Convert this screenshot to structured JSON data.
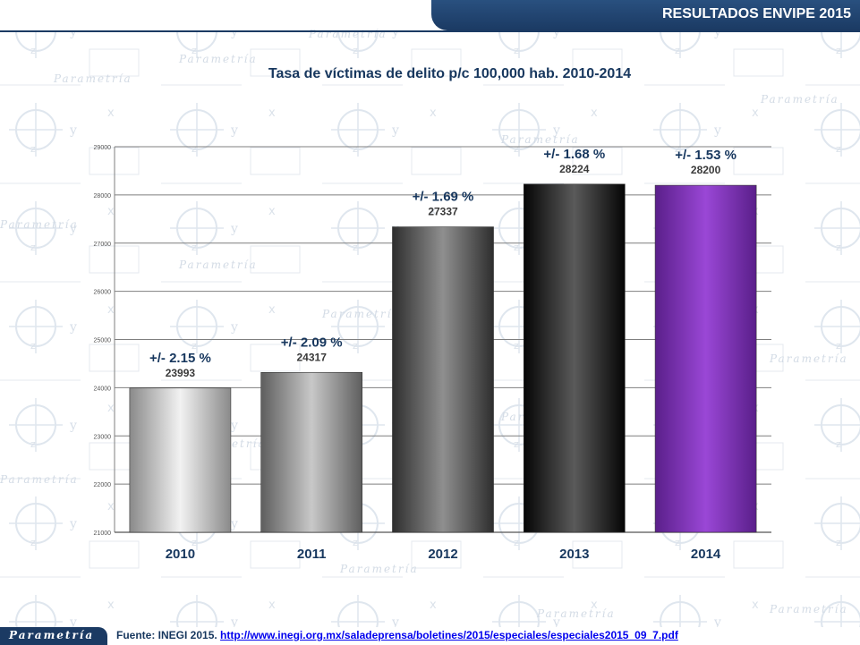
{
  "header": {
    "title": "RESULTADOS ENVIPE 2015"
  },
  "footer": {
    "logo_text": "Parametría",
    "source_label": "Fuente:  INEGI 2015.",
    "source_link": "http://www.inegi.org.mx/saladeprensa/boletines/2015/especiales/especiales2015_09_7.pdf"
  },
  "background": {
    "watermark_text": "Parametría"
  },
  "chart_data": {
    "type": "bar",
    "title": "Tasa de víctimas de delito p/c 100,000 hab. 2010-2014",
    "categories": [
      "2010",
      "2011",
      "2012",
      "2013",
      "2014"
    ],
    "values": [
      23993,
      24317,
      27337,
      28224,
      28200
    ],
    "value_labels": [
      "23993",
      "24317",
      "27337",
      "28224",
      "28200"
    ],
    "margins": [
      "+/- 2.15 %",
      "+/- 2.09 %",
      "+/- 1.69 %",
      "+/- 1.68 %",
      "+/- 1.53 %"
    ],
    "ylim": [
      21000,
      29000
    ],
    "yticks": [
      21000,
      22000,
      23000,
      24000,
      25000,
      26000,
      27000,
      28000,
      29000
    ],
    "xlabel": "",
    "ylabel": "",
    "grid": true,
    "legend": "none",
    "bar_colors": [
      [
        "#8a8a8a",
        "#f2f2f2",
        "#8a8a8a"
      ],
      [
        "#5e5e5e",
        "#c8c8c8",
        "#5e5e5e"
      ],
      [
        "#2e2e2e",
        "#8f8f8f",
        "#2e2e2e"
      ],
      [
        "#050505",
        "#5a5a5a",
        "#050505"
      ],
      [
        "#5a1f8a",
        "#9a47d6",
        "#5a1f8a"
      ]
    ],
    "colors": {
      "title": "#17375e",
      "margin_label": "#17375e",
      "value_label": "#3a3a3a",
      "category_label": "#17375e"
    }
  }
}
